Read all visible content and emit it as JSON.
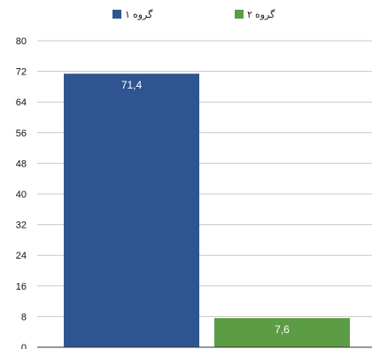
{
  "chart_data": {
    "type": "bar",
    "categories": [
      "گروه ۱",
      "گروه ۲"
    ],
    "series": [
      {
        "name": "گروه ۱",
        "color": "#2e5590",
        "value": 71.4,
        "label": "71,4"
      },
      {
        "name": "گروه ۲",
        "color": "#5c9c45",
        "value": 7.6,
        "label": "7,6"
      }
    ],
    "ylim": [
      0,
      80
    ],
    "yticks": [
      0,
      8,
      16,
      24,
      32,
      40,
      48,
      56,
      64,
      72,
      80
    ],
    "grid": true,
    "legend_position": "top-center"
  }
}
